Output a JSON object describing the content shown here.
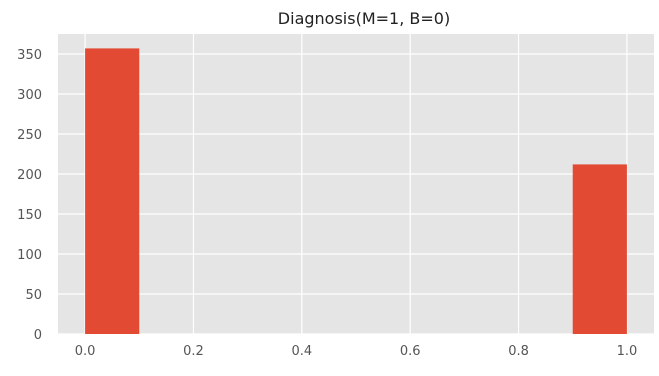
{
  "chart_data": {
    "type": "bar",
    "title": "Diagnosis(M=1, B=0)",
    "xlabel": "",
    "ylabel": "",
    "x_bins": [
      {
        "start": 0.0,
        "end": 0.1,
        "value": 357
      },
      {
        "start": 0.1,
        "end": 0.2,
        "value": 0
      },
      {
        "start": 0.2,
        "end": 0.3,
        "value": 0
      },
      {
        "start": 0.3,
        "end": 0.4,
        "value": 0
      },
      {
        "start": 0.4,
        "end": 0.5,
        "value": 0
      },
      {
        "start": 0.5,
        "end": 0.6,
        "value": 0
      },
      {
        "start": 0.6,
        "end": 0.7,
        "value": 0
      },
      {
        "start": 0.7,
        "end": 0.8,
        "value": 0
      },
      {
        "start": 0.8,
        "end": 0.9,
        "value": 0
      },
      {
        "start": 0.9,
        "end": 1.0,
        "value": 212
      }
    ],
    "xlim": [
      -0.05,
      1.05
    ],
    "ylim": [
      0,
      375
    ],
    "x_ticks": [
      {
        "value": 0.0,
        "label": "0.0"
      },
      {
        "value": 0.2,
        "label": "0.2"
      },
      {
        "value": 0.4,
        "label": "0.4"
      },
      {
        "value": 0.6,
        "label": "0.6"
      },
      {
        "value": 0.8,
        "label": "0.8"
      },
      {
        "value": 1.0,
        "label": "1.0"
      }
    ],
    "y_ticks": [
      {
        "value": 0,
        "label": "0"
      },
      {
        "value": 50,
        "label": "50"
      },
      {
        "value": 100,
        "label": "100"
      },
      {
        "value": 150,
        "label": "150"
      },
      {
        "value": 200,
        "label": "200"
      },
      {
        "value": 250,
        "label": "250"
      },
      {
        "value": 300,
        "label": "300"
      },
      {
        "value": 350,
        "label": "350"
      }
    ],
    "grid": true,
    "colors": {
      "bar": "#e24a33",
      "plot_background": "#e5e5e5",
      "grid": "#ffffff"
    }
  }
}
